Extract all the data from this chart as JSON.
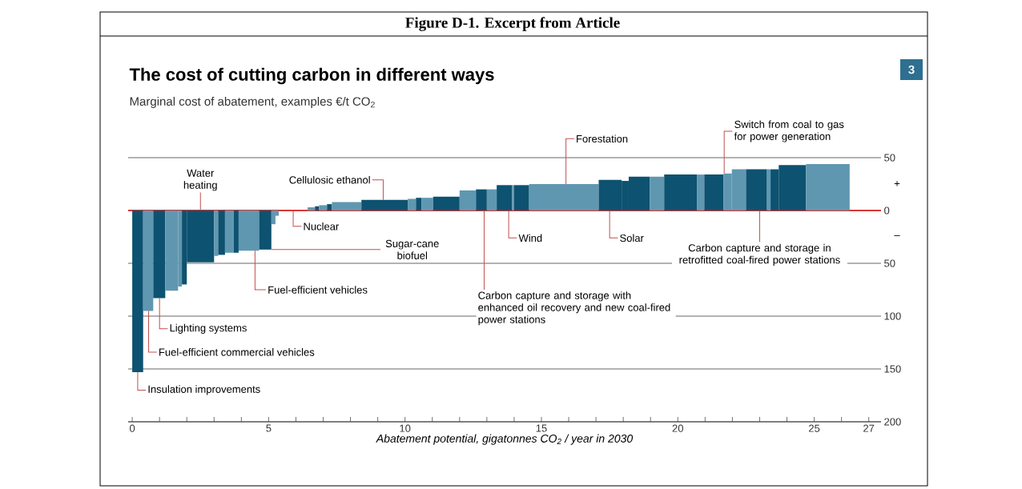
{
  "chart_data": {
    "type": "histogram",
    "title": "The cost of cutting carbon in different ways",
    "subtitle": "Marginal cost of abatement, examples €/t CO$_{2}$",
    "xlabel": "Abatement potential, gigatonnes CO$_{2}$ / year in 2030",
    "bins": [
      0,
      0.4,
      0.77,
      1.21,
      1.68,
      1.82,
      2.0,
      3.0,
      3.15,
      3.4,
      3.72,
      3.9,
      4.65,
      5.1,
      5.25,
      5.37,
      6.43,
      6.7,
      6.85,
      7.14,
      7.32,
      8.4,
      10.1,
      10.4,
      10.6,
      11.03,
      12.0,
      12.6,
      13.0,
      13.36,
      13.92,
      14.0,
      14.55,
      17.1,
      17.94,
      18.2,
      18.97,
      19.5,
      20.7,
      20.97,
      21.68,
      21.98,
      22.5,
      23.27,
      23.4,
      23.7,
      24.7,
      26.3
    ],
    "values": [
      -153,
      -95,
      -83,
      -76,
      -72,
      -70,
      -49,
      -43,
      -42,
      -40,
      -40,
      -38,
      -37,
      -13,
      -5,
      0,
      3,
      4,
      5,
      6,
      8,
      10,
      11,
      12,
      12,
      13,
      19,
      20,
      20,
      24,
      24,
      24,
      25,
      29,
      28,
      32,
      32,
      34,
      34,
      34,
      35,
      39,
      39,
      39,
      39,
      43,
      44
    ],
    "colors": [
      "#0d5270",
      "#6097b0",
      "#0d5270",
      "#6097b0",
      "#6097b0",
      "#0d5270",
      "#0d5270",
      "#6097b0",
      "#0d5270",
      "#6097b0",
      "#0d5270",
      "#6097b0",
      "#0d5270",
      "#6097b0",
      "#6097b0",
      "#6097b0",
      "#6097b0",
      "#0d5270",
      "#6097b0",
      "#0d5270",
      "#6097b0",
      "#0d5270",
      "#6097b0",
      "#0d5270",
      "#6097b0",
      "#0d5270",
      "#6097b0",
      "#0d5270",
      "#6097b0",
      "#0d5270",
      "#6097b0",
      "#0d5270",
      "#6097b0",
      "#0d5270",
      "#0d5270",
      "#0d5270",
      "#6097b0",
      "#0d5270",
      "#6097b0",
      "#0d5270",
      "#6097b0",
      "#6097b0",
      "#0d5270",
      "#6097b0",
      "#0d5270",
      "#0d5270",
      "#6097b0"
    ],
    "xlim": [
      -0.15,
      27.45
    ],
    "ylim": [
      -200,
      50
    ],
    "xticks": [
      0,
      {
        "value": 1,
        "label": null
      },
      {
        "value": 2,
        "label": null
      },
      {
        "value": 3,
        "label": null
      },
      {
        "value": 4,
        "label": null
      },
      5,
      {
        "value": 6,
        "label": null
      },
      {
        "value": 7,
        "label": null
      },
      {
        "value": 8,
        "label": null
      },
      {
        "value": 9,
        "label": null
      },
      10,
      {
        "value": 11,
        "label": null
      },
      {
        "value": 12,
        "label": null
      },
      {
        "value": 13,
        "label": null
      },
      {
        "value": 14,
        "label": null
      },
      15,
      {
        "value": 16,
        "label": null
      },
      {
        "value": 17,
        "label": null
      },
      {
        "value": 18,
        "label": null
      },
      {
        "value": 19,
        "label": null
      },
      20,
      {
        "value": 21,
        "label": null
      },
      {
        "value": 22,
        "label": null
      },
      {
        "value": 23,
        "label": null
      },
      {
        "value": 24,
        "label": null
      },
      25,
      {
        "value": 26,
        "label": null
      },
      27
    ],
    "yticks": [
      50,
      0,
      {
        "value": -50,
        "label": "50"
      },
      {
        "value": -100,
        "label": "100"
      },
      {
        "value": -150,
        "label": "150"
      },
      {
        "value": -200,
        "label": "200"
      }
    ],
    "grid": "y",
    "ref_lines": [
      {
        "axis": "y",
        "value": 0,
        "color": "#e3120b"
      }
    ],
    "annotations": [
      "Figure D-1. Excerpt from Article",
      "3",
      "+",
      "–",
      {
        "text": "Water heating",
        "x": 2.5,
        "y": 0
      },
      {
        "text": "Cellulosic ethanol",
        "x": 9.2,
        "y": 10
      },
      {
        "text": "Nuclear",
        "x": 5.9,
        "y": 0
      },
      {
        "text": "Sugar-cane biofuel",
        "x": 5.1,
        "y": -37
      },
      {
        "text": "Fuel-efficient vehicles",
        "x": 4.5,
        "y": -38
      },
      {
        "text": "Wind",
        "x": 13.8,
        "y": 0
      },
      {
        "text": "Solar",
        "x": 17.5,
        "y": 0
      },
      {
        "text": "Carbon capture and storage in retrofitted coal-fired power stations",
        "x": 23.0,
        "y": 0
      },
      {
        "text": "Forestation",
        "x": 15.9,
        "y": 25
      },
      {
        "text": "Switch from coal to gas for power generation",
        "x": 21.7,
        "y": 35
      },
      {
        "text": "Carbon capture and storage with enhanced oil recovery and new coal-fired power stations",
        "x": 12.9,
        "y": 0
      },
      {
        "text": "Lighting systems",
        "x": 1.0,
        "y": -83
      },
      {
        "text": "Fuel-efficient commercial vehicles",
        "x": 0.6,
        "y": -95
      },
      {
        "text": "Insulation improvements",
        "x": 0.2,
        "y": -153
      }
    ]
  }
}
